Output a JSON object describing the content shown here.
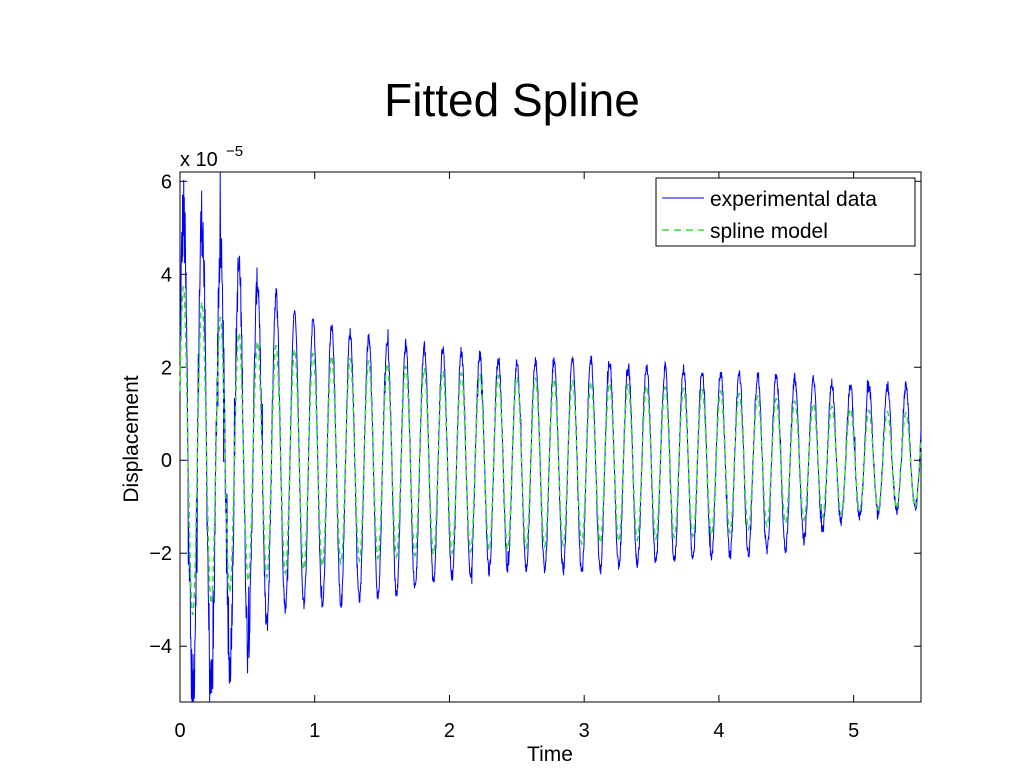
{
  "chart_data": {
    "type": "line",
    "title": "Fitted Spline",
    "xlabel": "Time",
    "ylabel": "Displacement",
    "y_exponent_label": {
      "base": "x 10",
      "exp": "−5"
    },
    "xlim": [
      0,
      5.5
    ],
    "ylim": [
      -5.2,
      6.2
    ],
    "x_ticks": [
      0,
      1,
      2,
      3,
      4,
      5
    ],
    "x_tick_labels": [
      "0",
      "1",
      "2",
      "3",
      "4",
      "5"
    ],
    "y_ticks": [
      -4,
      -2,
      0,
      2,
      4,
      6
    ],
    "y_tick_labels": [
      "−4",
      "−2",
      "0",
      "2",
      "4",
      "6"
    ],
    "y_units_note": "values in units of 1e-5",
    "grid": false,
    "legend_position": "top-right",
    "series": [
      {
        "name": "experimental data",
        "color": "#0000ff",
        "style": "solid",
        "envelope_peaks": [
          [
            0.0,
            5.2
          ],
          [
            0.12,
            5.4
          ],
          [
            0.3,
            4.5
          ],
          [
            0.5,
            4.0
          ],
          [
            0.66,
            3.7
          ],
          [
            0.85,
            3.2
          ],
          [
            1.0,
            3.0
          ],
          [
            1.3,
            2.7
          ],
          [
            1.6,
            2.5
          ],
          [
            2.0,
            2.4
          ],
          [
            2.5,
            2.1
          ],
          [
            3.0,
            2.2
          ],
          [
            3.5,
            2.0
          ],
          [
            4.0,
            1.9
          ],
          [
            4.5,
            1.8
          ],
          [
            5.0,
            1.6
          ],
          [
            5.5,
            1.6
          ]
        ],
        "envelope_troughs": [
          [
            0.0,
            -3.0
          ],
          [
            0.08,
            -5.1
          ],
          [
            0.24,
            -5.0
          ],
          [
            0.4,
            -4.3
          ],
          [
            0.62,
            -3.6
          ],
          [
            0.85,
            -3.0
          ],
          [
            1.0,
            -3.2
          ],
          [
            1.3,
            -3.0
          ],
          [
            1.6,
            -2.9
          ],
          [
            2.0,
            -2.5
          ],
          [
            2.5,
            -2.3
          ],
          [
            3.0,
            -2.4
          ],
          [
            3.5,
            -2.2
          ],
          [
            4.0,
            -2.1
          ],
          [
            4.5,
            -1.9
          ],
          [
            5.0,
            -1.2
          ],
          [
            5.5,
            -1.0
          ]
        ]
      },
      {
        "name": "spline model",
        "color": "#33dd33",
        "style": "dashed",
        "envelope_peaks": [
          [
            0.0,
            3.8
          ],
          [
            0.5,
            2.6
          ],
          [
            1.0,
            2.3
          ],
          [
            1.5,
            2.1
          ],
          [
            2.0,
            1.9
          ],
          [
            3.0,
            1.7
          ],
          [
            4.0,
            1.5
          ],
          [
            5.0,
            1.1
          ],
          [
            5.5,
            1.0
          ]
        ],
        "envelope_troughs": [
          [
            0.0,
            -3.5
          ],
          [
            0.5,
            -2.6
          ],
          [
            1.0,
            -2.3
          ],
          [
            1.5,
            -2.1
          ],
          [
            2.0,
            -2.0
          ],
          [
            3.0,
            -1.8
          ],
          [
            4.0,
            -1.6
          ],
          [
            5.0,
            -1.1
          ],
          [
            5.5,
            -1.0
          ]
        ]
      }
    ],
    "oscillation_cycles_in_range": 40
  }
}
